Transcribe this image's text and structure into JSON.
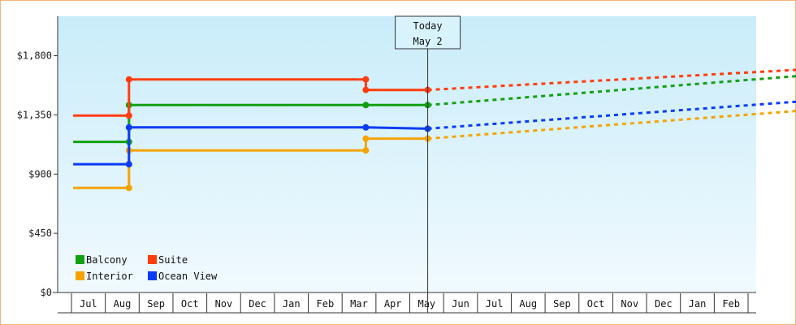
{
  "chart_data": {
    "type": "line",
    "title": "",
    "xlabel": "",
    "ylabel": "",
    "ylim": [
      0,
      2100
    ],
    "y_ticks": [
      {
        "value": 0,
        "label": "$0"
      },
      {
        "value": 450,
        "label": "$450"
      },
      {
        "value": 900,
        "label": "$900"
      },
      {
        "value": 1350,
        "label": "$1,350"
      },
      {
        "value": 1800,
        "label": "$1,800"
      }
    ],
    "months": [
      "Jul",
      "Aug",
      "Sep",
      "Oct",
      "Nov",
      "Dec",
      "Jan",
      "Feb",
      "Mar",
      "Apr",
      "May",
      "Jun",
      "Jul",
      "Aug",
      "Sep",
      "Oct",
      "Nov",
      "Dec",
      "Jan",
      "Feb"
    ],
    "today": {
      "line1": "Today",
      "line2": "May 2",
      "month_index": 10.03
    },
    "legend_position": "bottom-left",
    "series": [
      {
        "name": "Balcony",
        "color": "#12a012",
        "history": [
          [
            -0.45,
            1145
          ],
          [
            1.2,
            1145
          ],
          [
            1.2,
            1425
          ],
          [
            8.2,
            1425
          ],
          [
            10.03,
            1425
          ]
        ],
        "forecast": [
          [
            10.03,
            1425
          ],
          [
            21.45,
            1655
          ]
        ]
      },
      {
        "name": "Suite",
        "color": "#ff3d0d",
        "history": [
          [
            -0.45,
            1345
          ],
          [
            1.2,
            1345
          ],
          [
            1.2,
            1620
          ],
          [
            8.2,
            1620
          ],
          [
            8.2,
            1540
          ],
          [
            10.03,
            1540
          ]
        ],
        "forecast": [
          [
            10.03,
            1540
          ],
          [
            21.45,
            1700
          ]
        ]
      },
      {
        "name": "Interior",
        "color": "#f5a300",
        "history": [
          [
            -0.45,
            795
          ],
          [
            1.2,
            795
          ],
          [
            1.2,
            1080
          ],
          [
            8.2,
            1080
          ],
          [
            8.2,
            1170
          ],
          [
            10.03,
            1170
          ]
        ],
        "forecast": [
          [
            10.03,
            1170
          ],
          [
            21.45,
            1390
          ]
        ]
      },
      {
        "name": "Ocean View",
        "color": "#0a3cf5",
        "history": [
          [
            -0.45,
            975
          ],
          [
            1.2,
            975
          ],
          [
            1.2,
            1255
          ],
          [
            8.2,
            1255
          ],
          [
            10.03,
            1245
          ]
        ],
        "forecast": [
          [
            10.03,
            1245
          ],
          [
            21.45,
            1460
          ]
        ]
      }
    ],
    "legend_order": [
      0,
      1,
      2,
      3
    ]
  }
}
